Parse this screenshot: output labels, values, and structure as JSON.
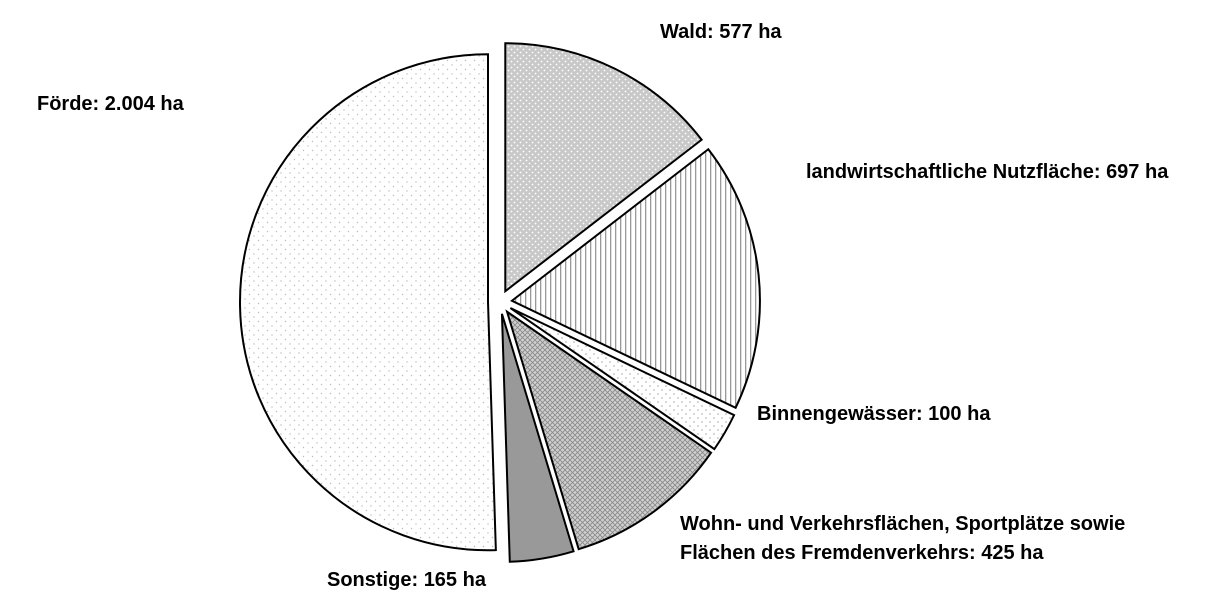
{
  "chart_data": {
    "type": "pie",
    "categories": [
      "Wald:",
      "landwirtschaftliche Nutzfläche:",
      "Binnengewässer:",
      "Wohn- und Verkehrsflächen, Sportplätze sowie Flächen des Fremdenverkehrs:",
      "Sonstige:",
      "Förde:"
    ],
    "values": [
      577,
      697,
      100,
      425,
      165,
      2004
    ],
    "value_labels": [
      "577 ha",
      "697 ha",
      "100 ha",
      "425 ha",
      "165 ha",
      "2.004 ha"
    ]
  }
}
